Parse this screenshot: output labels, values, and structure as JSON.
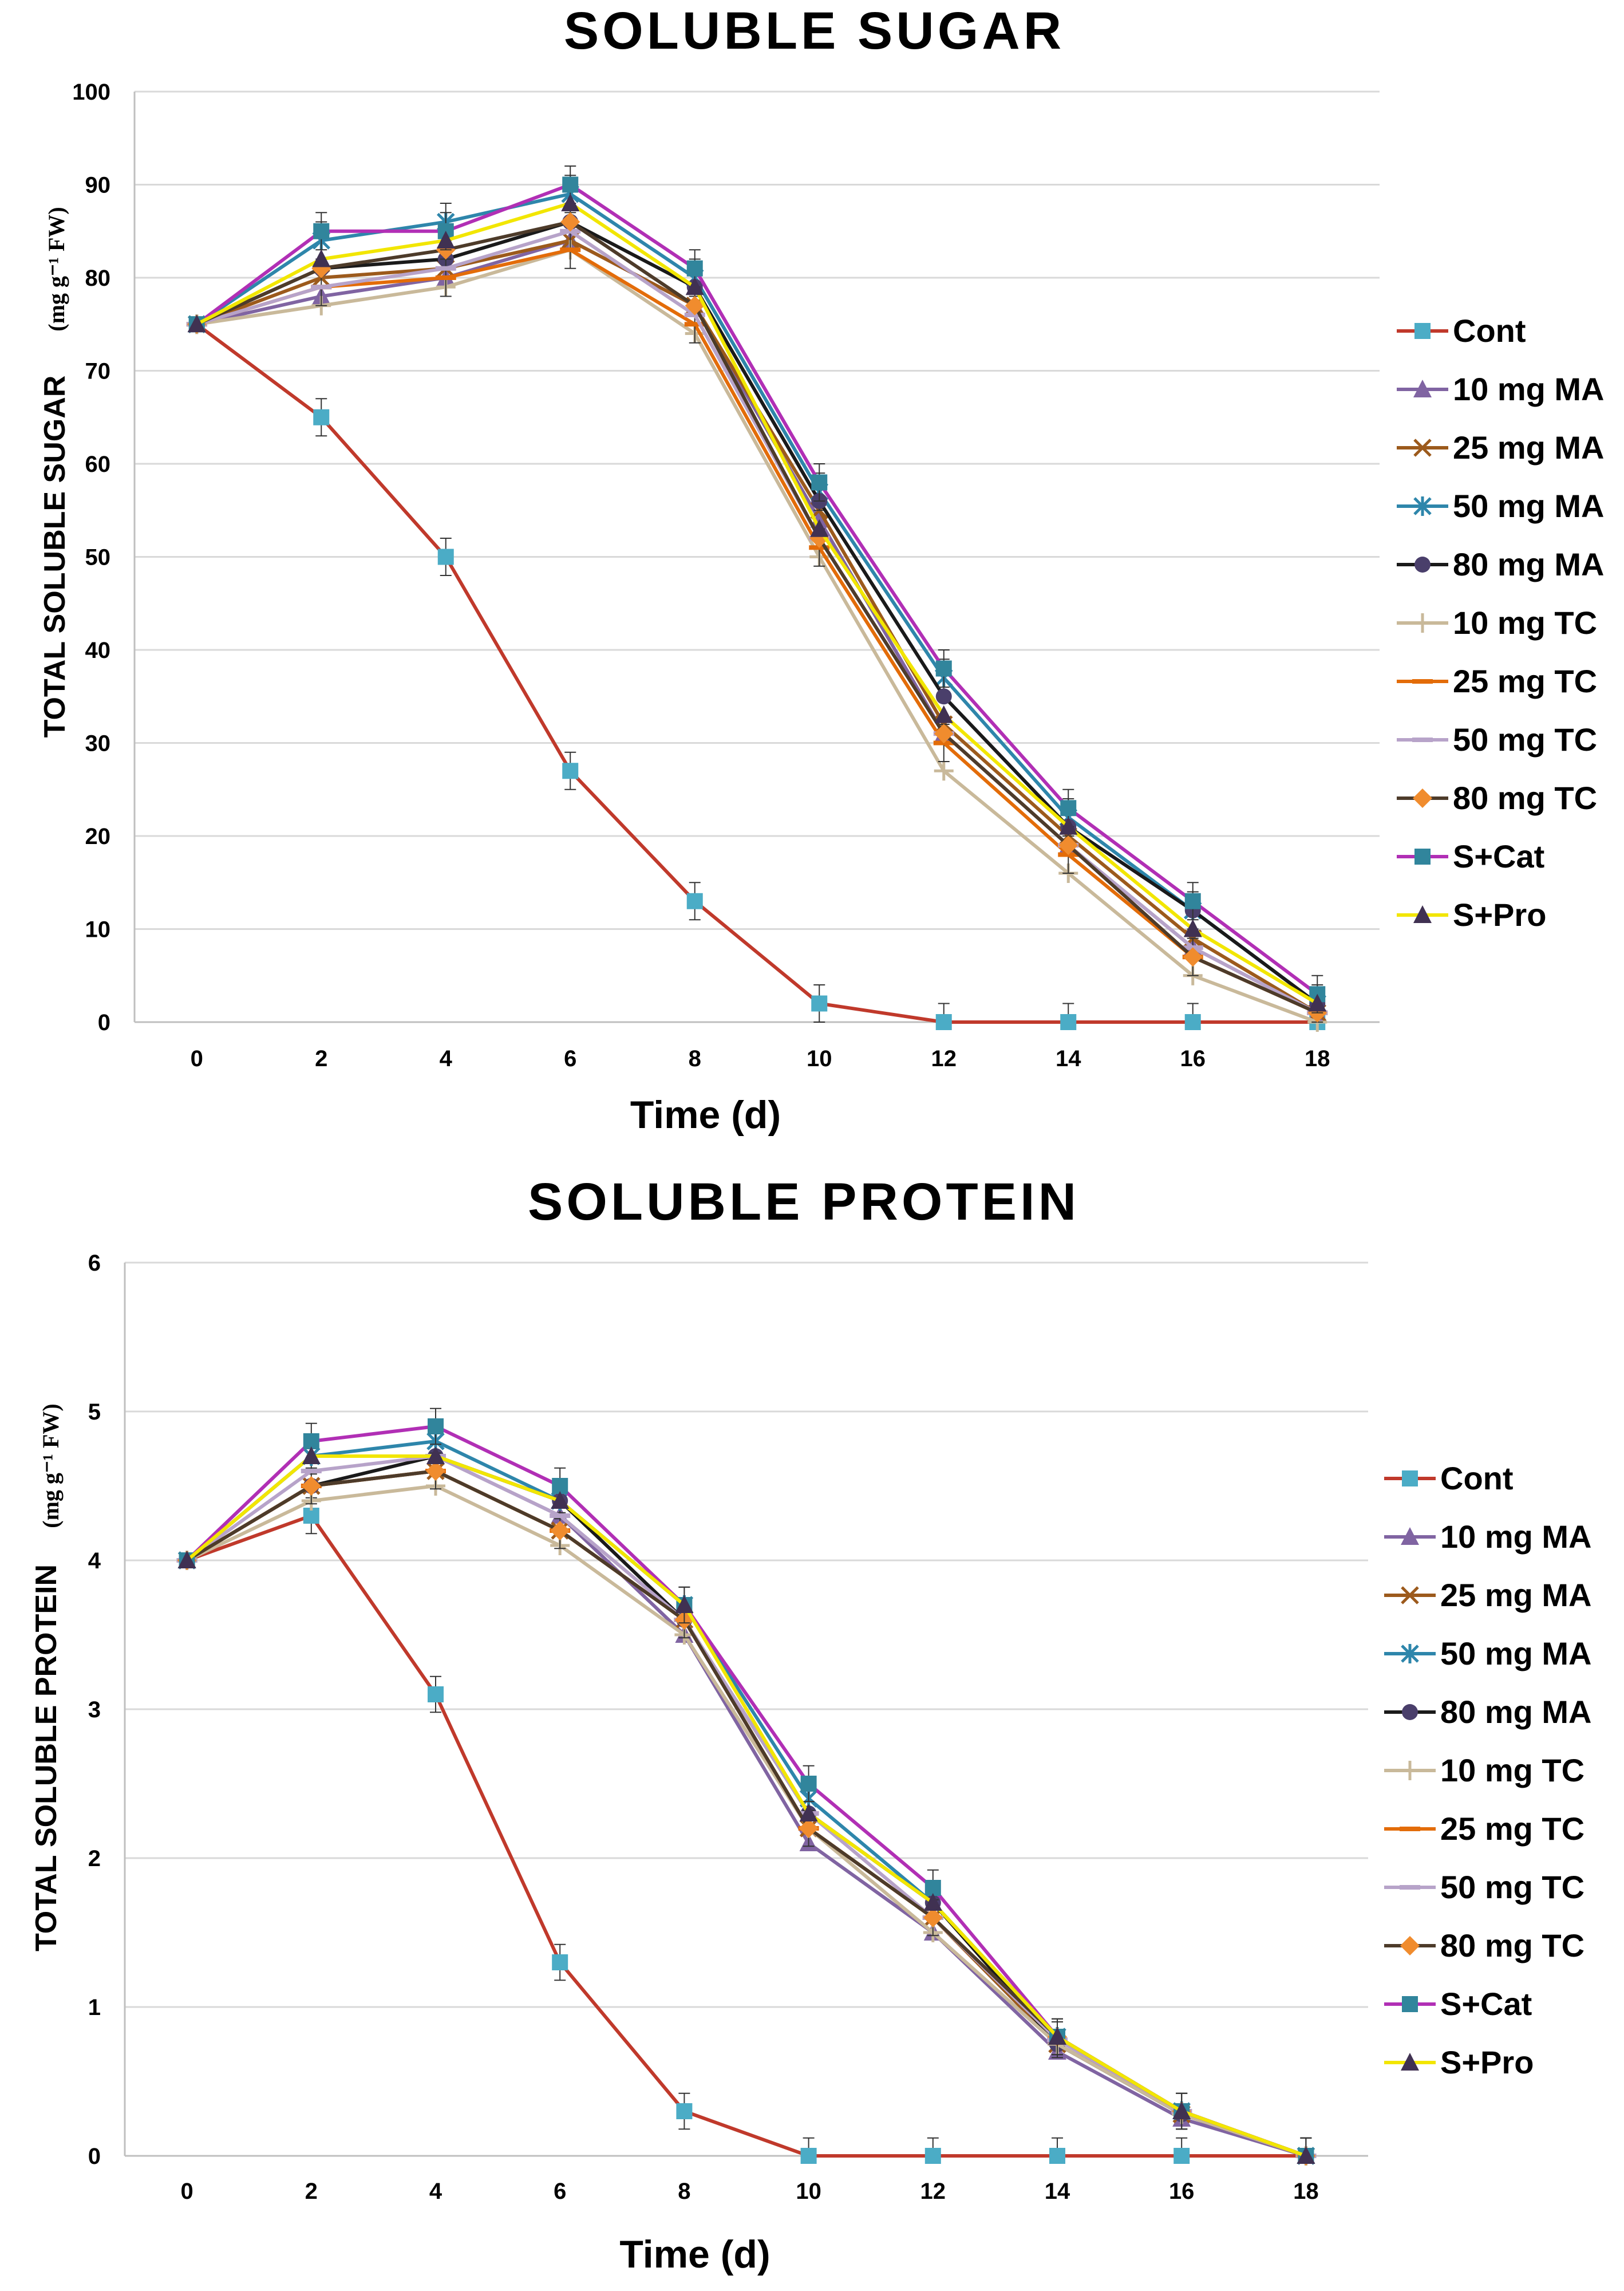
{
  "chart_data": [
    {
      "type": "line",
      "title": "SOLUBLE SUGAR",
      "xlabel": "Time (d)",
      "ylabel": "TOTAL SOLUBLE SUGAR",
      "ylabel_unit": "(mg g⁻¹ FW)",
      "x": [
        0,
        2,
        4,
        6,
        8,
        10,
        12,
        14,
        16,
        18
      ],
      "x_ticks": [
        "0",
        "2",
        "4",
        "6",
        "8",
        "10",
        "12",
        "14",
        "16",
        "18"
      ],
      "ylim": [
        0,
        100
      ],
      "y_ticks": [
        "0",
        "10",
        "20",
        "30",
        "40",
        "50",
        "60",
        "70",
        "80",
        "90",
        "100"
      ],
      "grid": true,
      "legend_position": "right",
      "series": [
        {
          "name": "Cont",
          "color": "#c0392b",
          "marker": "square",
          "marker_color": "#4bacc6",
          "values": [
            75,
            65,
            50,
            27,
            13,
            2,
            0,
            0,
            0,
            0
          ]
        },
        {
          "name": "10 mg MA",
          "color": "#8064a2",
          "marker": "triangle",
          "marker_color": "#8064a2",
          "values": [
            75,
            78,
            80,
            84,
            77,
            54,
            31,
            19,
            8,
            1
          ]
        },
        {
          "name": "25 mg MA",
          "color": "#9c5a1c",
          "marker": "x",
          "marker_color": "#9c5a1c",
          "values": [
            75,
            80,
            81,
            84,
            77,
            55,
            32,
            20,
            9,
            1
          ]
        },
        {
          "name": "50 mg MA",
          "color": "#2e86ab",
          "marker": "star",
          "marker_color": "#2e86ab",
          "values": [
            75,
            84,
            86,
            89,
            80,
            57,
            37,
            22,
            12,
            2
          ]
        },
        {
          "name": "80 mg MA",
          "color": "#1a1a1a",
          "marker": "circle",
          "marker_color": "#4a3f6b",
          "values": [
            75,
            81,
            82,
            86,
            79,
            56,
            35,
            21,
            12,
            2
          ]
        },
        {
          "name": "10 mg TC",
          "color": "#c9b99a",
          "marker": "plus",
          "marker_color": "#c9b99a",
          "values": [
            75,
            77,
            79,
            83,
            74,
            50,
            27,
            16,
            5,
            0
          ]
        },
        {
          "name": "25 mg TC",
          "color": "#e36c09",
          "marker": "dash",
          "marker_color": "#e36c09",
          "values": [
            75,
            79,
            80,
            83,
            75,
            51,
            30,
            18,
            7,
            1
          ]
        },
        {
          "name": "50 mg TC",
          "color": "#b7a3c9",
          "marker": "dash",
          "marker_color": "#b7a3c9",
          "values": [
            75,
            79,
            81,
            85,
            76,
            52,
            31,
            19,
            8,
            1
          ]
        },
        {
          "name": "80 mg TC",
          "color": "#4d3b2a",
          "marker": "diamond",
          "marker_color": "#f08c2e",
          "values": [
            75,
            81,
            83,
            86,
            77,
            52,
            31,
            19,
            7,
            1
          ]
        },
        {
          "name": "S+Cat",
          "color": "#b12fb5",
          "marker": "square",
          "marker_color": "#31859c",
          "values": [
            75,
            85,
            85,
            90,
            81,
            58,
            38,
            23,
            13,
            3
          ]
        },
        {
          "name": "S+Pro",
          "color": "#f2e600",
          "marker": "triangle",
          "marker_color": "#403152",
          "values": [
            75,
            82,
            84,
            88,
            79,
            53,
            33,
            21,
            10,
            2
          ]
        }
      ]
    },
    {
      "type": "line",
      "title": "SOLUBLE PROTEIN",
      "xlabel": "Time (d)",
      "ylabel": "TOTAL SOLUBLE PROTEIN",
      "ylabel_unit": "(mg g⁻¹ FW)",
      "x": [
        0,
        2,
        4,
        6,
        8,
        10,
        12,
        14,
        16,
        18
      ],
      "x_ticks": [
        "0",
        "2",
        "4",
        "6",
        "8",
        "10",
        "12",
        "14",
        "16",
        "18"
      ],
      "ylim": [
        0,
        6
      ],
      "y_ticks": [
        "0",
        "1",
        "2",
        "3",
        "4",
        "5",
        "6"
      ],
      "grid": true,
      "legend_position": "right",
      "series": [
        {
          "name": "Cont",
          "color": "#c0392b",
          "marker": "square",
          "marker_color": "#4bacc6",
          "values": [
            4.0,
            4.3,
            3.1,
            1.3,
            0.3,
            0.0,
            0.0,
            0.0,
            0.0,
            0.0
          ]
        },
        {
          "name": "10 mg MA",
          "color": "#8064a2",
          "marker": "triangle",
          "marker_color": "#8064a2",
          "values": [
            4.0,
            4.7,
            4.7,
            4.3,
            3.5,
            2.1,
            1.5,
            0.7,
            0.25,
            0.0
          ]
        },
        {
          "name": "25 mg MA",
          "color": "#9c5a1c",
          "marker": "x",
          "marker_color": "#9c5a1c",
          "values": [
            4.0,
            4.5,
            4.6,
            4.2,
            3.6,
            2.2,
            1.6,
            0.75,
            0.28,
            0.0
          ]
        },
        {
          "name": "50 mg MA",
          "color": "#2e86ab",
          "marker": "star",
          "marker_color": "#2e86ab",
          "values": [
            4.0,
            4.7,
            4.8,
            4.4,
            3.7,
            2.4,
            1.7,
            0.8,
            0.3,
            0.0
          ]
        },
        {
          "name": "80 mg MA",
          "color": "#1a1a1a",
          "marker": "circle",
          "marker_color": "#4a3f6b",
          "values": [
            4.0,
            4.5,
            4.7,
            4.4,
            3.6,
            2.3,
            1.7,
            0.75,
            0.28,
            0.0
          ]
        },
        {
          "name": "10 mg TC",
          "color": "#c9b99a",
          "marker": "plus",
          "marker_color": "#c9b99a",
          "values": [
            4.0,
            4.4,
            4.5,
            4.1,
            3.5,
            2.2,
            1.5,
            0.75,
            0.28,
            0.0
          ]
        },
        {
          "name": "25 mg TC",
          "color": "#e36c09",
          "marker": "dash",
          "marker_color": "#e36c09",
          "values": [
            4.0,
            4.5,
            4.6,
            4.2,
            3.6,
            2.2,
            1.6,
            0.78,
            0.3,
            0.0
          ]
        },
        {
          "name": "50 mg TC",
          "color": "#b7a3c9",
          "marker": "dash",
          "marker_color": "#b7a3c9",
          "values": [
            4.0,
            4.6,
            4.7,
            4.3,
            3.6,
            2.3,
            1.6,
            0.78,
            0.3,
            0.0
          ]
        },
        {
          "name": "80 mg TC",
          "color": "#4d3b2a",
          "marker": "diamond",
          "marker_color": "#f08c2e",
          "values": [
            4.0,
            4.5,
            4.6,
            4.2,
            3.6,
            2.2,
            1.6,
            0.8,
            0.3,
            0.0
          ]
        },
        {
          "name": "S+Cat",
          "color": "#b12fb5",
          "marker": "square",
          "marker_color": "#31859c",
          "values": [
            4.0,
            4.8,
            4.9,
            4.5,
            3.7,
            2.5,
            1.8,
            0.8,
            0.3,
            0.0
          ]
        },
        {
          "name": "S+Pro",
          "color": "#f2e600",
          "marker": "triangle",
          "marker_color": "#403152",
          "values": [
            4.0,
            4.7,
            4.7,
            4.4,
            3.7,
            2.3,
            1.7,
            0.8,
            0.3,
            0.0
          ]
        }
      ]
    }
  ]
}
